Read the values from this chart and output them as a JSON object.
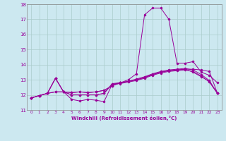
{
  "title": "",
  "xlabel": "Windchill (Refroidissement éolien,°C)",
  "ylabel": "",
  "bg_color": "#cce8f0",
  "grid_color": "#aacccc",
  "line_color": "#990099",
  "spine_color": "#888888",
  "xlim": [
    -0.5,
    23.5
  ],
  "ylim": [
    11,
    18
  ],
  "yticks": [
    11,
    12,
    13,
    14,
    15,
    16,
    17,
    18
  ],
  "xticks": [
    0,
    1,
    2,
    3,
    4,
    5,
    6,
    7,
    8,
    9,
    10,
    11,
    12,
    13,
    14,
    15,
    16,
    17,
    18,
    19,
    20,
    21,
    22,
    23
  ],
  "series": [
    [
      11.8,
      11.95,
      12.1,
      13.1,
      12.2,
      11.7,
      11.6,
      11.7,
      11.65,
      11.55,
      12.7,
      12.8,
      13.0,
      13.4,
      17.3,
      17.75,
      17.75,
      17.0,
      14.1,
      14.1,
      14.2,
      13.5,
      13.3,
      12.8
    ],
    [
      11.8,
      11.95,
      12.1,
      12.2,
      12.2,
      12.15,
      12.2,
      12.15,
      12.2,
      12.3,
      12.6,
      12.8,
      12.9,
      13.0,
      13.15,
      13.35,
      13.5,
      13.6,
      13.65,
      13.7,
      13.7,
      13.65,
      13.55,
      12.1
    ],
    [
      11.8,
      11.95,
      12.1,
      12.2,
      12.2,
      12.15,
      12.2,
      12.15,
      12.2,
      12.3,
      12.6,
      12.8,
      12.9,
      13.0,
      13.15,
      13.35,
      13.5,
      13.6,
      13.65,
      13.7,
      13.5,
      13.2,
      12.9,
      12.1
    ],
    [
      11.8,
      11.95,
      12.1,
      13.1,
      12.2,
      12.0,
      12.0,
      12.0,
      12.0,
      12.1,
      12.7,
      12.75,
      12.85,
      12.95,
      13.1,
      13.3,
      13.45,
      13.55,
      13.6,
      13.65,
      13.55,
      13.25,
      12.85,
      12.1
    ],
    [
      11.8,
      11.95,
      12.1,
      13.1,
      12.2,
      12.0,
      12.0,
      12.0,
      12.0,
      12.1,
      12.75,
      12.8,
      12.9,
      13.05,
      13.2,
      13.4,
      13.55,
      13.65,
      13.7,
      13.75,
      13.65,
      13.35,
      12.95,
      12.1
    ]
  ]
}
